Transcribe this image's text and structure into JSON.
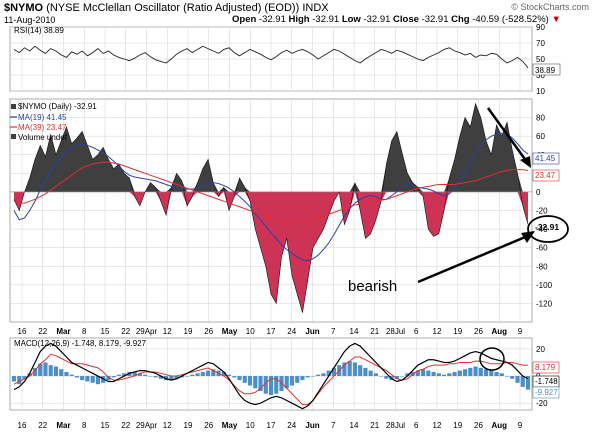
{
  "header": {
    "symbol": "$NYMO",
    "name": "(NYSE McClellan Oscillator (Ratio Adjusted) (EOD))",
    "exchange": "INDX",
    "watermark": "© StockCharts.com",
    "date": "11-Aug-2010",
    "open_label": "Open",
    "open": "-32.91",
    "high_label": "High",
    "high": "-32.91",
    "low_label": "Low",
    "low": "-32.91",
    "close_label": "Close",
    "close": "-32.91",
    "chg_label": "Chg",
    "chg": "-40.59 (-528.52%)",
    "chg_arrow": "▼"
  },
  "x_ticks": [
    "16",
    "22",
    "Mar",
    "8",
    "15",
    "22",
    "29Apr",
    "12",
    "19",
    "26",
    "May",
    "10",
    "17",
    "24",
    "Jun",
    "7",
    "14",
    "21",
    "28Jul",
    "6",
    "12",
    "19",
    "26",
    "Aug",
    "9"
  ],
  "colors": {
    "price_pos": "#3f3f3f",
    "price_neg": "#cc3355",
    "ma19": "#2e3fa6",
    "ma39": "#e03030",
    "macd_bar": "#4a8fc8",
    "macd_line": "#000000",
    "signal_line": "#e03030",
    "grid": "#d0d0d0"
  },
  "annotation": {
    "text": "bearish"
  },
  "chart_data": [
    {
      "type": "line",
      "name": "rsi",
      "legend": "RSI(14) 38.89",
      "last_label": "38.89",
      "ylim": [
        10,
        90
      ],
      "y_ticks": [
        "90",
        "70",
        "50",
        "30",
        "10"
      ],
      "series": [
        {
          "values": [
            62,
            58,
            64,
            60,
            66,
            61,
            57,
            63,
            60,
            55,
            52,
            59,
            56,
            60,
            54,
            58,
            63,
            57,
            60,
            55,
            52,
            50,
            48,
            51,
            55,
            58,
            53,
            49,
            47,
            45,
            50,
            56,
            60,
            63,
            58,
            62,
            66,
            63,
            60,
            57,
            62,
            64,
            58,
            54,
            58,
            62,
            59,
            56,
            52,
            49,
            53,
            58,
            61,
            57,
            60,
            62,
            59,
            55,
            50,
            54,
            58,
            62,
            60,
            56,
            52,
            48,
            45,
            50,
            54,
            58,
            62,
            60,
            57,
            61,
            59,
            56,
            53,
            50,
            48,
            52,
            55,
            58,
            62,
            64,
            60,
            58,
            55,
            57,
            52,
            55,
            54,
            57,
            56,
            50,
            45,
            48,
            52,
            47,
            39
          ]
        }
      ]
    },
    {
      "type": "area",
      "name": "nymo",
      "legend_symbol": "$NYMO (Daily) -32.91",
      "legend_ma19": "MA(19) 41.45",
      "legend_ma39": "MA(39) 23.47",
      "legend_volume": "Volume undef",
      "last_labels": [
        "41.45",
        "23.47",
        "-32.91"
      ],
      "ylim": [
        -140,
        100
      ],
      "y_ticks": [
        "80",
        "60",
        "40",
        "20",
        "0",
        "-20",
        "-40",
        "-60",
        "-80",
        "-100",
        "-120"
      ],
      "series": [
        {
          "values": [
            -8,
            -20,
            0,
            15,
            35,
            50,
            38,
            62,
            40,
            55,
            70,
            52,
            58,
            65,
            50,
            35,
            40,
            48,
            35,
            25,
            30,
            20,
            15,
            -5,
            -15,
            0,
            10,
            5,
            -10,
            -25,
            5,
            20,
            12,
            -15,
            -5,
            10,
            25,
            35,
            10,
            -5,
            5,
            -20,
            -5,
            15,
            5,
            -10,
            -40,
            -60,
            -80,
            -110,
            -120,
            -70,
            -50,
            -90,
            -110,
            -130,
            -95,
            -60,
            -50,
            -40,
            -25,
            -10,
            0,
            -35,
            -20,
            10,
            -20,
            -50,
            -45,
            -30,
            -10,
            30,
            55,
            65,
            42,
            20,
            10,
            5,
            -5,
            -40,
            -48,
            -45,
            -20,
            15,
            35,
            60,
            80,
            70,
            95,
            80,
            55,
            40,
            72,
            60,
            75,
            45,
            20,
            -15,
            -35
          ]
        },
        {
          "values": [
            -20,
            -30,
            -28,
            -20,
            -10,
            2,
            12,
            22,
            30,
            38,
            44,
            48,
            50,
            51,
            50,
            48,
            45,
            42,
            38,
            33,
            28,
            22,
            18,
            16,
            15,
            14,
            13,
            12,
            10,
            8,
            6,
            5,
            4,
            3,
            3,
            4,
            6,
            8,
            10,
            9,
            7,
            4,
            0,
            -5,
            -10,
            -16,
            -24,
            -30,
            -37,
            -44,
            -50,
            -57,
            -62,
            -66,
            -70,
            -73,
            -74,
            -72,
            -68,
            -62,
            -55,
            -46,
            -36,
            -26,
            -18,
            -12,
            -8,
            -5,
            -4,
            -5,
            -8,
            -8,
            -4,
            0,
            5,
            8,
            7,
            5,
            4,
            3,
            1,
            -2,
            -4,
            -2,
            4,
            12,
            22,
            32,
            42,
            50,
            56,
            60,
            62,
            63,
            62,
            58,
            52,
            45,
            41
          ]
        },
        {
          "values": [
            -10,
            -12,
            -12,
            -10,
            -8,
            -5,
            -2,
            2,
            6,
            10,
            14,
            18,
            22,
            26,
            28,
            30,
            31,
            32,
            32,
            31,
            30,
            28,
            26,
            24,
            22,
            20,
            18,
            16,
            14,
            12,
            10,
            8,
            6,
            4,
            2,
            0,
            -2,
            -4,
            -6,
            -8,
            -10,
            -12,
            -14,
            -16,
            -18,
            -20,
            -22,
            -24,
            -26,
            -28,
            -30,
            -32,
            -33,
            -34,
            -34,
            -33,
            -32,
            -30,
            -28,
            -26,
            -24,
            -22,
            -20,
            -18,
            -16,
            -14,
            -13,
            -12,
            -11,
            -10,
            -9,
            -8,
            -6,
            -4,
            -2,
            0,
            2,
            4,
            5,
            6,
            7,
            8,
            8,
            8,
            8,
            9,
            10,
            11,
            12,
            14,
            16,
            18,
            20,
            22,
            23,
            24,
            24,
            24,
            23
          ]
        }
      ]
    },
    {
      "type": "bar",
      "name": "macd",
      "legend": "MACD(12,26,9) -1.748, 8.179, -9.927",
      "last_labels": [
        "8.179",
        "-1.748",
        "-9.927"
      ],
      "ylim": [
        -25,
        28
      ],
      "y_ticks": [
        "20",
        "0",
        "-20"
      ],
      "series": [
        {
          "values": [
            -4,
            -6,
            -2,
            2,
            6,
            9,
            10,
            8,
            7,
            5,
            3,
            1,
            -1,
            -3,
            -4,
            -5,
            -6,
            -5,
            -3,
            -1,
            1,
            2,
            3,
            3,
            2,
            1,
            0,
            -1,
            -2,
            -3,
            -3,
            -2,
            -1,
            0,
            1,
            2,
            3,
            4,
            5,
            4,
            3,
            1,
            -1,
            -3,
            -5,
            -7,
            -9,
            -11,
            -13,
            -14,
            -13,
            -11,
            -9,
            -7,
            -5,
            -3,
            -1,
            0,
            1,
            2,
            4,
            6,
            8,
            10,
            11,
            10,
            8,
            6,
            4,
            2,
            0,
            -2,
            -3,
            -2,
            0,
            2,
            3,
            4,
            5,
            4,
            3,
            2,
            1,
            2,
            3,
            4,
            5,
            6,
            7,
            6,
            5,
            4,
            3,
            2,
            0,
            -2,
            -5,
            -8,
            -10
          ]
        },
        {
          "values": [
            -10,
            -8,
            -4,
            2,
            10,
            18,
            22,
            24,
            22,
            18,
            14,
            10,
            8,
            6,
            4,
            2,
            0,
            -2,
            -4,
            -4,
            -2,
            0,
            2,
            3,
            4,
            4,
            3,
            2,
            0,
            -2,
            -3,
            -2,
            0,
            2,
            4,
            6,
            8,
            10,
            9,
            6,
            3,
            -2,
            -8,
            -14,
            -18,
            -20,
            -21,
            -20,
            -18,
            -16,
            -15,
            -16,
            -18,
            -20,
            -22,
            -24,
            -22,
            -18,
            -12,
            -6,
            0,
            6,
            12,
            18,
            22,
            24,
            22,
            18,
            14,
            10,
            6,
            2,
            -2,
            -4,
            -3,
            0,
            4,
            8,
            10,
            12,
            12,
            11,
            10,
            10,
            11,
            13,
            15,
            17,
            18,
            17,
            15,
            13,
            12,
            11,
            10,
            8,
            4,
            0,
            -2
          ]
        },
        {
          "values": [
            -6,
            -4,
            -2,
            0,
            4,
            9,
            12,
            16,
            15,
            13,
            11,
            9,
            9,
            9,
            8,
            7,
            6,
            3,
            -1,
            -3,
            -3,
            -2,
            -1,
            0,
            2,
            3,
            3,
            3,
            2,
            1,
            0,
            0,
            1,
            2,
            3,
            4,
            5,
            6,
            4,
            2,
            0,
            -3,
            -7,
            -11,
            -13,
            -13,
            -12,
            -9,
            -5,
            -2,
            -2,
            -5,
            -9,
            -13,
            -17,
            -21,
            -21,
            -18,
            -13,
            -8,
            -4,
            0,
            4,
            8,
            11,
            14,
            14,
            12,
            10,
            8,
            6,
            4,
            1,
            -2,
            -3,
            -2,
            1,
            4,
            5,
            7,
            8,
            8,
            8,
            9,
            9,
            10,
            10,
            10,
            11,
            11,
            10,
            9,
            9,
            9,
            10,
            10,
            9,
            8,
            8
          ]
        }
      ]
    }
  ]
}
